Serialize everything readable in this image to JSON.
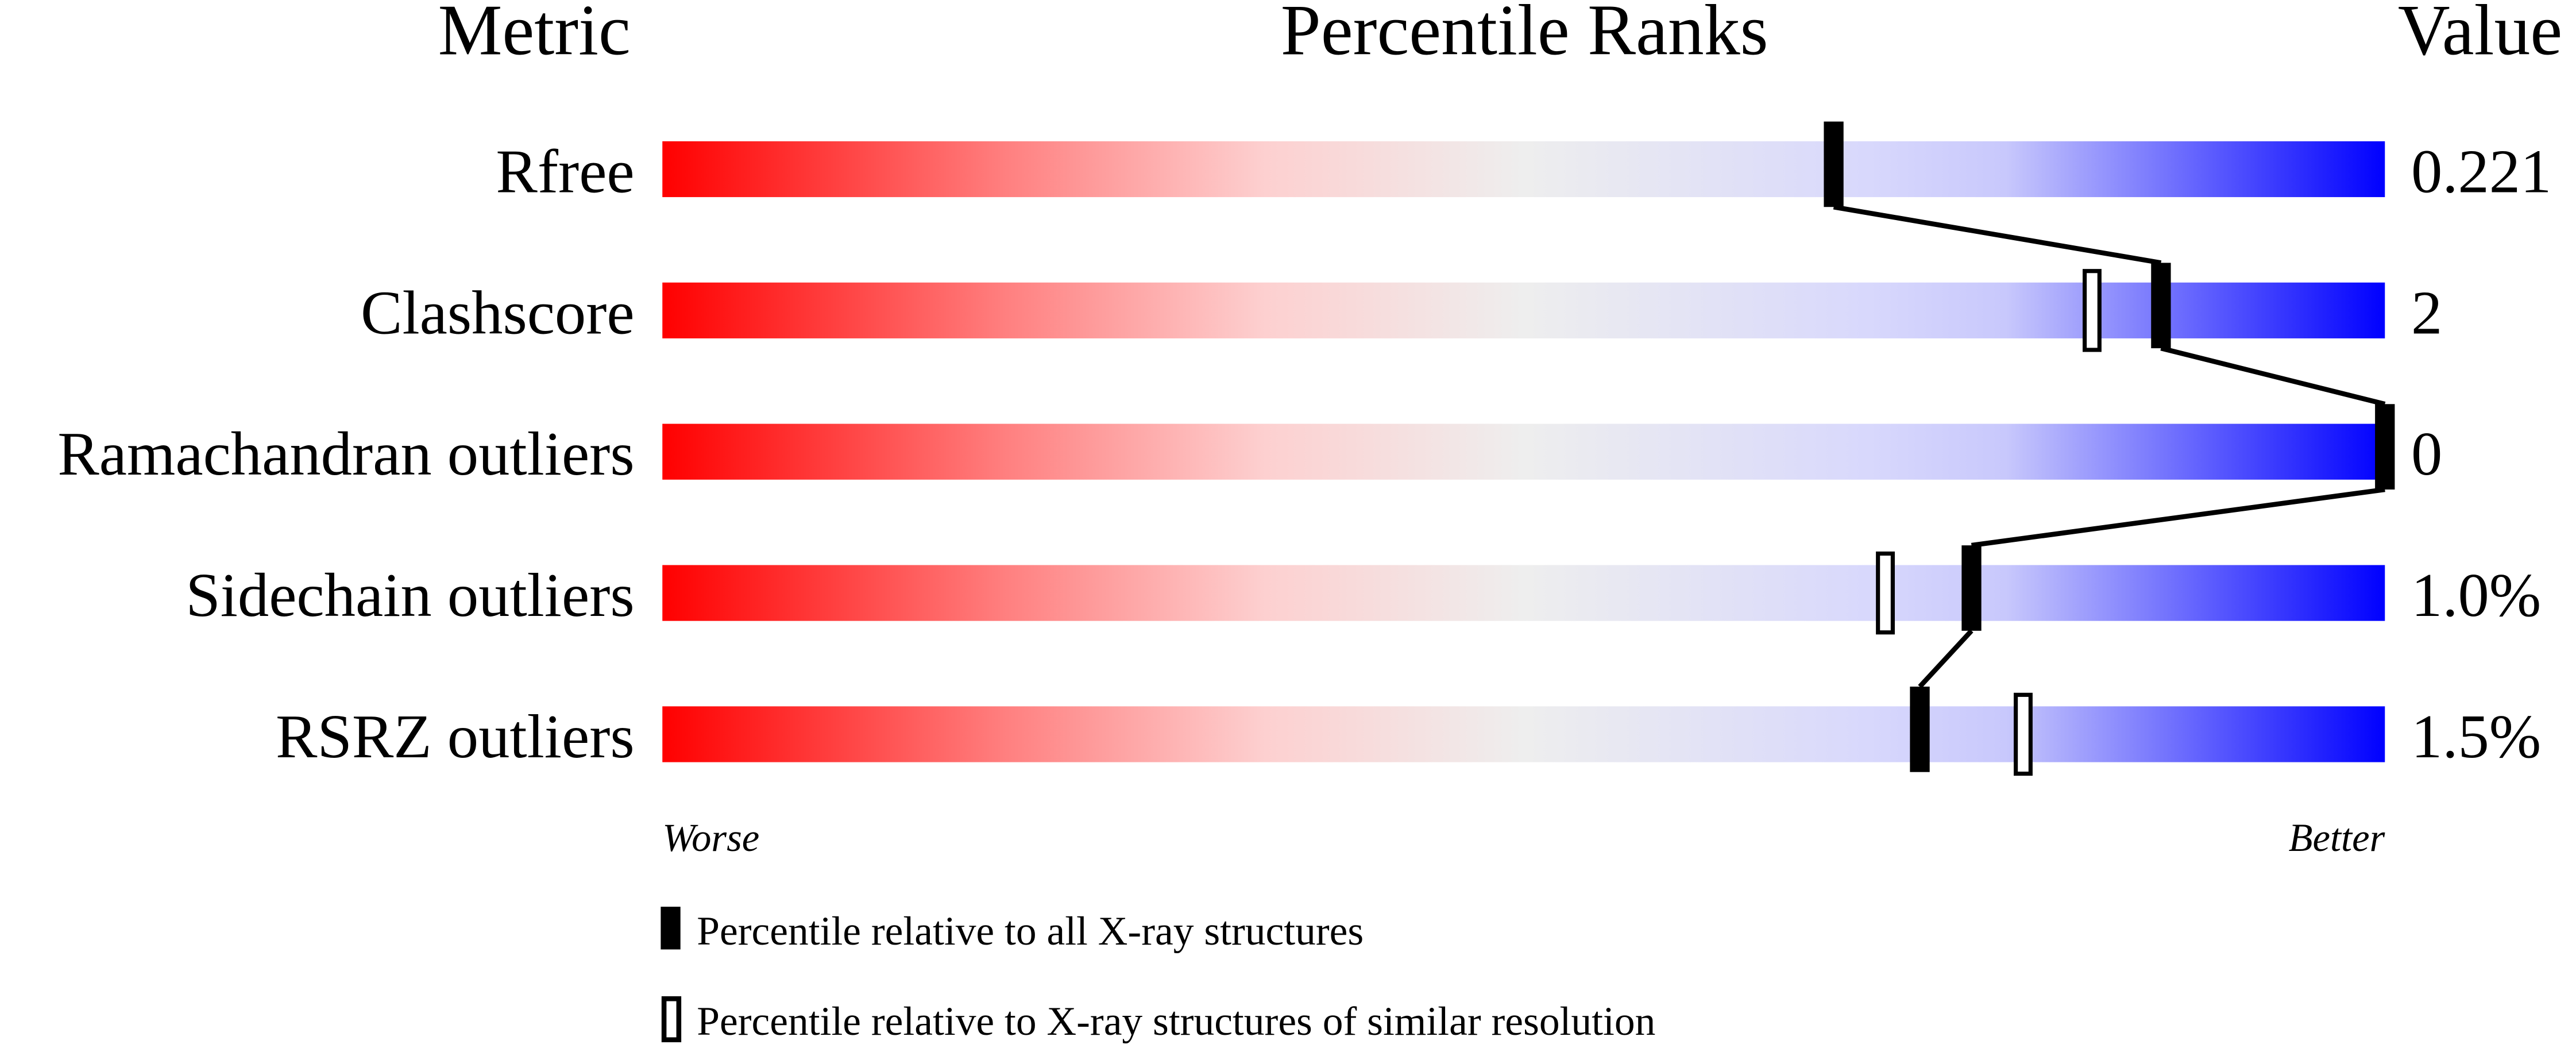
{
  "chart_data": {
    "type": "percentile-bar",
    "headers": {
      "metric": "Metric",
      "ranks": "Percentile Ranks",
      "value": "Value"
    },
    "xlim": [
      0,
      100
    ],
    "scale_labels": {
      "worse": "Worse",
      "better": "Better"
    },
    "colors": {
      "worse": "#ff0000",
      "middle": "#eeeeee",
      "better": "#0000ff",
      "marker": "#000000"
    },
    "rows": [
      {
        "metric": "Rfree",
        "value": "0.221",
        "percentile_all": 68,
        "percentile_similar": null
      },
      {
        "metric": "Clashscore",
        "value": "2",
        "percentile_all": 87,
        "percentile_similar": 83
      },
      {
        "metric": "Ramachandran outliers",
        "value": "0",
        "percentile_all": 100,
        "percentile_similar": 100
      },
      {
        "metric": "Sidechain outliers",
        "value": "1.0%",
        "percentile_all": 76,
        "percentile_similar": 71
      },
      {
        "metric": "RSRZ outliers",
        "value": "1.5%",
        "percentile_all": 73,
        "percentile_similar": 79
      }
    ],
    "legend": [
      {
        "marker": "filled",
        "label": "Percentile relative to all X-ray structures"
      },
      {
        "marker": "open",
        "label": "Percentile relative to X-ray structures of similar resolution"
      }
    ]
  }
}
